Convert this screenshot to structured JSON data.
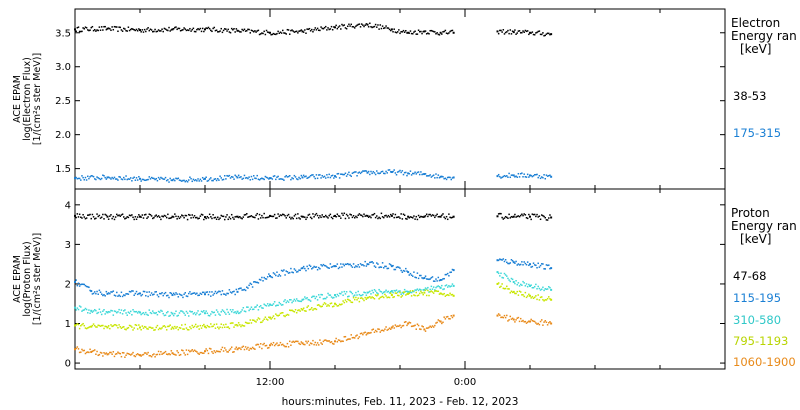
{
  "chart_data": [
    {
      "type": "scatter",
      "panel": "electron",
      "ylabel": [
        "ACE EPAM",
        "log(Electron Flux)",
        "[1/(cm²s ster MeV)]"
      ],
      "ylim": [
        1.2,
        3.85
      ],
      "yticks": [
        1.5,
        2.0,
        2.5,
        3.0,
        3.5
      ],
      "ytick_labels": [
        "1.5",
        "2.0",
        "2.5",
        "3.0",
        "3.5"
      ],
      "legend_title": [
        "Electron",
        "Energy ran",
        "[keV]"
      ],
      "series": [
        {
          "name": "38-53",
          "color": "#000000",
          "x": [
            0,
            2,
            4,
            6,
            8,
            10,
            12,
            14,
            16,
            18,
            19.5,
            20.5,
            21.5,
            22.5,
            23.3,
            26,
            27,
            28,
            29.3
          ],
          "y": [
            3.55,
            3.56,
            3.54,
            3.55,
            3.55,
            3.53,
            3.5,
            3.52,
            3.58,
            3.62,
            3.55,
            3.5,
            3.52,
            3.5,
            3.5,
            3.52,
            3.51,
            3.5,
            3.48
          ]
        },
        {
          "name": "175-315",
          "color": "#1a7fd4",
          "x": [
            0,
            2,
            4,
            6,
            8,
            10,
            12,
            14,
            16,
            18,
            19.5,
            20.5,
            21.5,
            22.5,
            23.3,
            26,
            27,
            28,
            29.3
          ],
          "y": [
            1.36,
            1.37,
            1.35,
            1.33,
            1.35,
            1.37,
            1.36,
            1.37,
            1.39,
            1.44,
            1.45,
            1.43,
            1.42,
            1.38,
            1.37,
            1.39,
            1.4,
            1.4,
            1.38
          ]
        }
      ]
    },
    {
      "type": "scatter",
      "panel": "proton",
      "ylabel": [
        "ACE EPAM",
        "log(Proton Flux)",
        "[1/(cm²s ster MeV)]"
      ],
      "ylim": [
        -0.15,
        4.4
      ],
      "yticks": [
        0,
        1,
        2,
        3,
        4
      ],
      "ytick_labels": [
        "0",
        "1",
        "2",
        "3",
        "4"
      ],
      "legend_title": [
        "Proton",
        "Energy ran",
        "[keV]"
      ],
      "series": [
        {
          "name": "47-68",
          "color": "#000000",
          "x": [
            0,
            2,
            4,
            6,
            8,
            10,
            12,
            14,
            16,
            18,
            19.5,
            20.5,
            21.5,
            22.5,
            23.3,
            26,
            27,
            28,
            29.3
          ],
          "y": [
            3.72,
            3.7,
            3.7,
            3.7,
            3.69,
            3.7,
            3.72,
            3.7,
            3.72,
            3.72,
            3.72,
            3.7,
            3.7,
            3.7,
            3.7,
            3.71,
            3.7,
            3.7,
            3.68
          ]
        },
        {
          "name": "115-195",
          "color": "#1a7fd4",
          "x": [
            0,
            1,
            2,
            4,
            6,
            8,
            10,
            12,
            14,
            16,
            18,
            19.5,
            20.5,
            21.5,
            22.5,
            23.3,
            26,
            27,
            28,
            29.3
          ],
          "y": [
            2.05,
            1.82,
            1.75,
            1.76,
            1.72,
            1.74,
            1.8,
            2.2,
            2.4,
            2.45,
            2.5,
            2.45,
            2.3,
            2.15,
            2.1,
            2.35,
            2.6,
            2.55,
            2.5,
            2.4
          ]
        },
        {
          "name": "310-580",
          "color": "#3fd8d8",
          "x": [
            0,
            1,
            2,
            4,
            6,
            8,
            10,
            12,
            14,
            16,
            18,
            19.5,
            20.5,
            21.5,
            22.5,
            23.3,
            26,
            27,
            28,
            29.3
          ],
          "y": [
            1.4,
            1.32,
            1.28,
            1.28,
            1.25,
            1.26,
            1.3,
            1.48,
            1.6,
            1.72,
            1.78,
            1.82,
            1.8,
            1.85,
            1.9,
            1.95,
            2.3,
            2.05,
            1.95,
            1.85
          ]
        },
        {
          "name": "795-1193",
          "color": "#c8e600",
          "x": [
            0,
            1,
            2,
            4,
            6,
            8,
            10,
            12,
            14,
            16,
            18,
            19.5,
            20.5,
            21.5,
            22.5,
            23.3,
            26,
            27,
            28,
            29.3
          ],
          "y": [
            0.95,
            0.92,
            0.9,
            0.9,
            0.9,
            0.92,
            0.95,
            1.15,
            1.35,
            1.5,
            1.65,
            1.72,
            1.75,
            1.78,
            1.76,
            1.7,
            2.0,
            1.8,
            1.7,
            1.6
          ]
        },
        {
          "name": "1060-1900",
          "color": "#e88a1a",
          "x": [
            0,
            1,
            2,
            4,
            6,
            8,
            10,
            12,
            14,
            16,
            18,
            19.5,
            20.5,
            21.5,
            22.5,
            23.3,
            26,
            27,
            28,
            29.3
          ],
          "y": [
            0.35,
            0.28,
            0.22,
            0.2,
            0.25,
            0.3,
            0.35,
            0.45,
            0.5,
            0.55,
            0.75,
            0.9,
            1.0,
            0.85,
            1.05,
            1.2,
            1.2,
            1.1,
            1.05,
            1.0
          ]
        }
      ]
    }
  ],
  "x_axis": {
    "xlim": [
      0,
      40
    ],
    "major_ticks": [
      12,
      24
    ],
    "major_labels": [
      "12:00",
      "0:00"
    ],
    "minor_ticks": [
      4,
      8,
      16,
      20,
      28,
      32,
      36
    ],
    "label": "hours:minutes, Feb. 11, 2023 - Feb. 12, 2023"
  }
}
